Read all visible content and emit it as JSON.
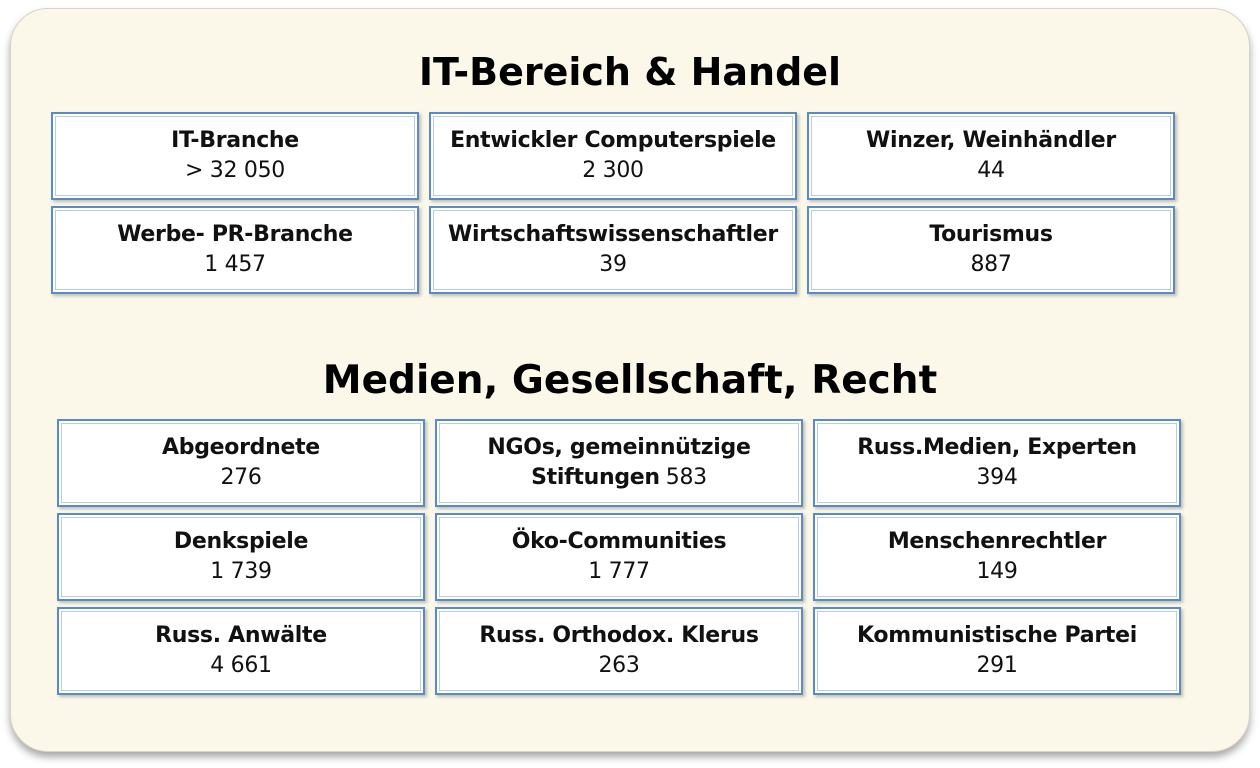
{
  "sections": [
    {
      "title": "IT-Bereich & Handel",
      "cards": [
        {
          "label": "IT-Branche",
          "value": "> 32 050"
        },
        {
          "label": "Entwickler Computerspiele",
          "value": "2 300"
        },
        {
          "label": "Winzer, Weinhändler",
          "value": "44"
        },
        {
          "label": "Werbe- PR-Branche",
          "value": "1 457"
        },
        {
          "label": "Wirtschaftswissenschaftler",
          "value": "39"
        },
        {
          "label": "Tourismus",
          "value": "887"
        }
      ]
    },
    {
      "title": "Medien, Gesellschaft, Recht",
      "cards": [
        {
          "label": "Abgeordnete",
          "value": "276"
        },
        {
          "label_line1": "NGOs, gemeinnützige",
          "label_line2": "Stiftungen",
          "value": "583"
        },
        {
          "label": "Russ.Medien, Experten",
          "value": "394"
        },
        {
          "label": "Denkspiele",
          "value": "1 739"
        },
        {
          "label": "Öko-Communities",
          "value": "1 777"
        },
        {
          "label": "Menschenrechtler",
          "value": "149"
        },
        {
          "label": "Russ. Anwälte",
          "value": "4 661"
        },
        {
          "label": "Russ. Orthodox. Klerus",
          "value": "263"
        },
        {
          "label": "Kommunistische Partei",
          "value": "291"
        }
      ]
    }
  ]
}
